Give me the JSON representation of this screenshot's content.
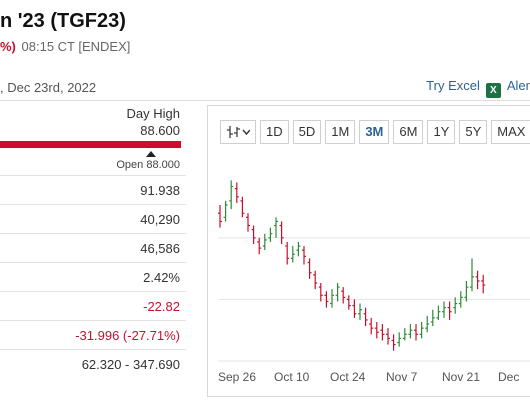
{
  "header": {
    "title": "n '23 (TGF23)",
    "change_pct": "%)",
    "time_info": "08:15 CT [ENDEX]",
    "date_line": ", Dec 23rd, 2022"
  },
  "top_links": {
    "try_excel": "Try Excel",
    "alerts": "Aler"
  },
  "stats": {
    "day_high_label": "Day High",
    "day_high_value": "88.600",
    "day_range_fraction": 1.0,
    "open_label": "Open 88.000",
    "rows": [
      "91.938",
      "40,290",
      "46,586",
      "2.42%",
      "-22.82",
      "-31.996 (-27.71%)",
      "62.320 - 347.690"
    ]
  },
  "chart": {
    "chart_type_icon": "candlestick-icon",
    "ranges": [
      "1D",
      "5D",
      "1M",
      "3M",
      "6M",
      "1Y",
      "5Y",
      "MAX"
    ],
    "active_range": "3M",
    "x_ticks": [
      "Sep 26",
      "Oct 10",
      "Oct 24",
      "Nov 7",
      "Nov 21",
      "Dec"
    ],
    "colors": {
      "up": "#2e8b3a",
      "down": "#c8102e",
      "grid": "#e4e4e4"
    }
  },
  "chart_data": {
    "type": "candlestick",
    "title": "",
    "xlabel": "",
    "ylabel": "",
    "x": [
      "Sep 26",
      "Sep 27",
      "Sep 28",
      "Sep 29",
      "Sep 30",
      "Oct 3",
      "Oct 4",
      "Oct 5",
      "Oct 6",
      "Oct 7",
      "Oct 10",
      "Oct 11",
      "Oct 12",
      "Oct 13",
      "Oct 14",
      "Oct 17",
      "Oct 18",
      "Oct 19",
      "Oct 20",
      "Oct 21",
      "Oct 24",
      "Oct 25",
      "Oct 26",
      "Oct 27",
      "Oct 28",
      "Oct 31",
      "Nov 1",
      "Nov 2",
      "Nov 3",
      "Nov 4",
      "Nov 7",
      "Nov 8",
      "Nov 9",
      "Nov 10",
      "Nov 11",
      "Nov 14",
      "Nov 15",
      "Nov 16",
      "Nov 17",
      "Nov 18",
      "Nov 21",
      "Nov 22",
      "Nov 23",
      "Nov 25",
      "Nov 28",
      "Nov 29",
      "Nov 30",
      "Dec 1"
    ],
    "series": [
      {
        "close": [
          158,
          166,
          175,
          170,
          162,
          156,
          150,
          145,
          149,
          152,
          158,
          150,
          140,
          142,
          146,
          141,
          133,
          128,
          122,
          119,
          122,
          126,
          121,
          117,
          113,
          115,
          110,
          106,
          104,
          103,
          101,
          98,
          101,
          103,
          105,
          103,
          106,
          108,
          111,
          114,
          116,
          114,
          118,
          121,
          126,
          131,
          129,
          127
        ],
        "open": [
          162,
          160,
          168,
          174,
          168,
          160,
          154,
          148,
          146,
          150,
          156,
          156,
          146,
          140,
          144,
          144,
          138,
          132,
          126,
          122,
          118,
          122,
          124,
          120,
          117,
          113,
          113,
          108,
          106,
          105,
          103,
          100,
          99,
          101,
          103,
          105,
          103,
          106,
          109,
          111,
          114,
          116,
          116,
          118,
          121,
          126,
          131,
          129
        ],
        "high": [
          166,
          168,
          178,
          177,
          170,
          162,
          156,
          150,
          152,
          155,
          160,
          158,
          148,
          146,
          148,
          146,
          140,
          134,
          128,
          124,
          125,
          128,
          126,
          122,
          120,
          118,
          116,
          111,
          109,
          108,
          106,
          103,
          104,
          106,
          108,
          108,
          109,
          112,
          115,
          117,
          119,
          119,
          121,
          124,
          129,
          140,
          134,
          132
        ],
        "low": [
          155,
          158,
          164,
          167,
          160,
          153,
          147,
          142,
          144,
          148,
          150,
          147,
          137,
          138,
          141,
          137,
          130,
          125,
          119,
          116,
          116,
          119,
          118,
          115,
          111,
          110,
          107,
          103,
          101,
          100,
          98,
          95,
          97,
          100,
          101,
          100,
          101,
          104,
          107,
          110,
          111,
          110,
          113,
          116,
          119,
          124,
          125,
          123
        ]
      }
    ]
  }
}
